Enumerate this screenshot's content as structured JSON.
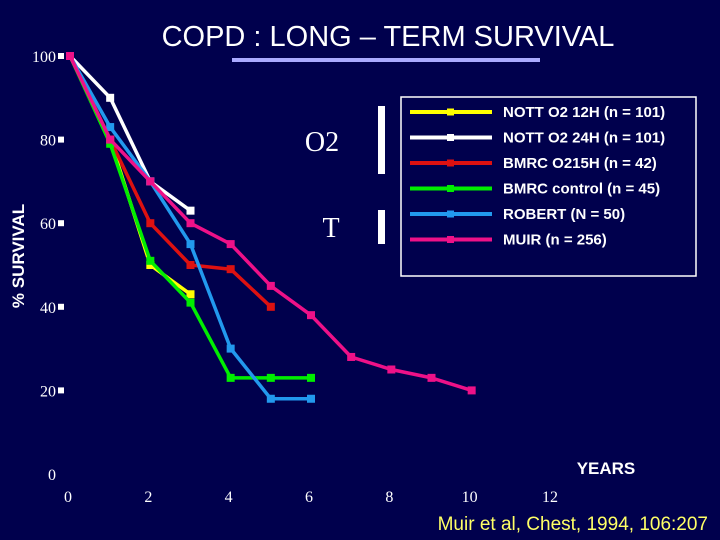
{
  "chart_data": {
    "type": "line",
    "title": "COPD :  LONG – TERM SURVIVAL",
    "ylabel": "% SURVIVAL",
    "xlabel": "YEARS",
    "xlim": [
      0,
      12
    ],
    "ylim": [
      0,
      100
    ],
    "x_ticks": [
      0,
      2,
      4,
      6,
      8,
      10,
      12
    ],
    "y_ticks": [
      0,
      20,
      40,
      60,
      80,
      100
    ],
    "series": [
      {
        "name": "NOTT O2 12H (n = 101)",
        "color": "#ffff00",
        "points": [
          [
            0,
            100
          ],
          [
            1,
            80
          ],
          [
            2,
            50
          ],
          [
            3,
            43
          ]
        ]
      },
      {
        "name": "NOTT O2 24H (n = 101)",
        "color": "#ffffff",
        "points": [
          [
            0,
            100
          ],
          [
            1,
            90
          ],
          [
            2,
            70
          ],
          [
            3,
            63
          ]
        ]
      },
      {
        "name": "BMRC O215H (n = 42)",
        "color": "#dd1111",
        "points": [
          [
            0,
            100
          ],
          [
            1,
            80
          ],
          [
            2,
            60
          ],
          [
            3,
            50
          ],
          [
            4,
            49
          ],
          [
            5,
            40
          ]
        ]
      },
      {
        "name": "BMRC control (n = 45)",
        "color": "#00ee00",
        "points": [
          [
            0,
            100
          ],
          [
            1,
            79
          ],
          [
            2,
            51
          ],
          [
            3,
            41
          ],
          [
            4,
            23
          ],
          [
            5,
            23
          ],
          [
            6,
            23
          ]
        ]
      },
      {
        "name": "ROBERT (N = 50)",
        "color": "#2299ee",
        "points": [
          [
            0,
            100
          ],
          [
            1,
            83
          ],
          [
            2,
            70
          ],
          [
            3,
            55
          ],
          [
            4,
            30
          ],
          [
            5,
            18
          ],
          [
            6,
            18
          ]
        ]
      },
      {
        "name": "MUIR  (n = 256)",
        "color": "#ee1188",
        "points": [
          [
            0,
            100
          ],
          [
            1,
            80
          ],
          [
            2,
            70
          ],
          [
            3,
            60
          ],
          [
            4,
            55
          ],
          [
            5,
            45
          ],
          [
            6,
            38
          ],
          [
            7,
            28
          ],
          [
            8,
            25
          ],
          [
            9,
            23
          ],
          [
            10,
            20
          ]
        ]
      }
    ],
    "annotations": [
      "O2",
      "T"
    ],
    "citation": "Muir et al, Chest, 1994, 106:207"
  }
}
